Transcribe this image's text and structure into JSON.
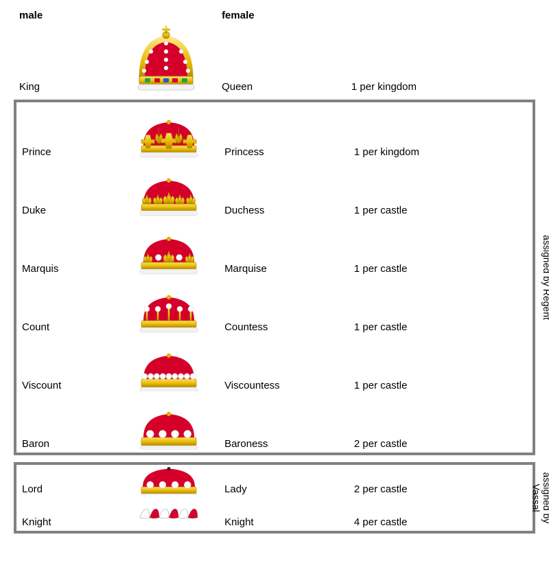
{
  "headers": {
    "male": "male",
    "female": "female"
  },
  "top_rank": {
    "male": "King",
    "female": "Queen",
    "count": "1 per kingdom",
    "icon": "king-crown"
  },
  "regent_box": {
    "label": "assigned by Regent",
    "ranks": [
      {
        "male": "Prince",
        "female": "Princess",
        "count": "1 per kingdom",
        "icon": "prince"
      },
      {
        "male": "Duke",
        "female": "Duchess",
        "count": "1 per castle",
        "icon": "duke"
      },
      {
        "male": "Marquis",
        "female": "Marquise",
        "count": "1 per castle",
        "icon": "marquis"
      },
      {
        "male": "Count",
        "female": "Countess",
        "count": "1 per castle",
        "icon": "count"
      },
      {
        "male": "Viscount",
        "female": "Viscountess",
        "count": "1 per castle",
        "icon": "viscount"
      },
      {
        "male": "Baron",
        "female": "Baroness",
        "count": "2 per castle",
        "icon": "baron"
      }
    ]
  },
  "vassal_box": {
    "label": "assigned by\nVassal",
    "ranks": [
      {
        "male": "Lord",
        "female": "Lady",
        "count": "2 per castle",
        "icon": "lord",
        "short": true
      },
      {
        "male": "Knight",
        "female": "Knight",
        "count": "4 per castle",
        "icon": "knight",
        "short": true
      }
    ]
  },
  "colors": {
    "gold": "#e6b800",
    "gold_d": "#b38600",
    "gold_l": "#ffe066",
    "red": "#d4002a",
    "red_d": "#8a001c",
    "white": "#ffffff",
    "ermine": "#f2f2f2",
    "border": "#808080"
  }
}
